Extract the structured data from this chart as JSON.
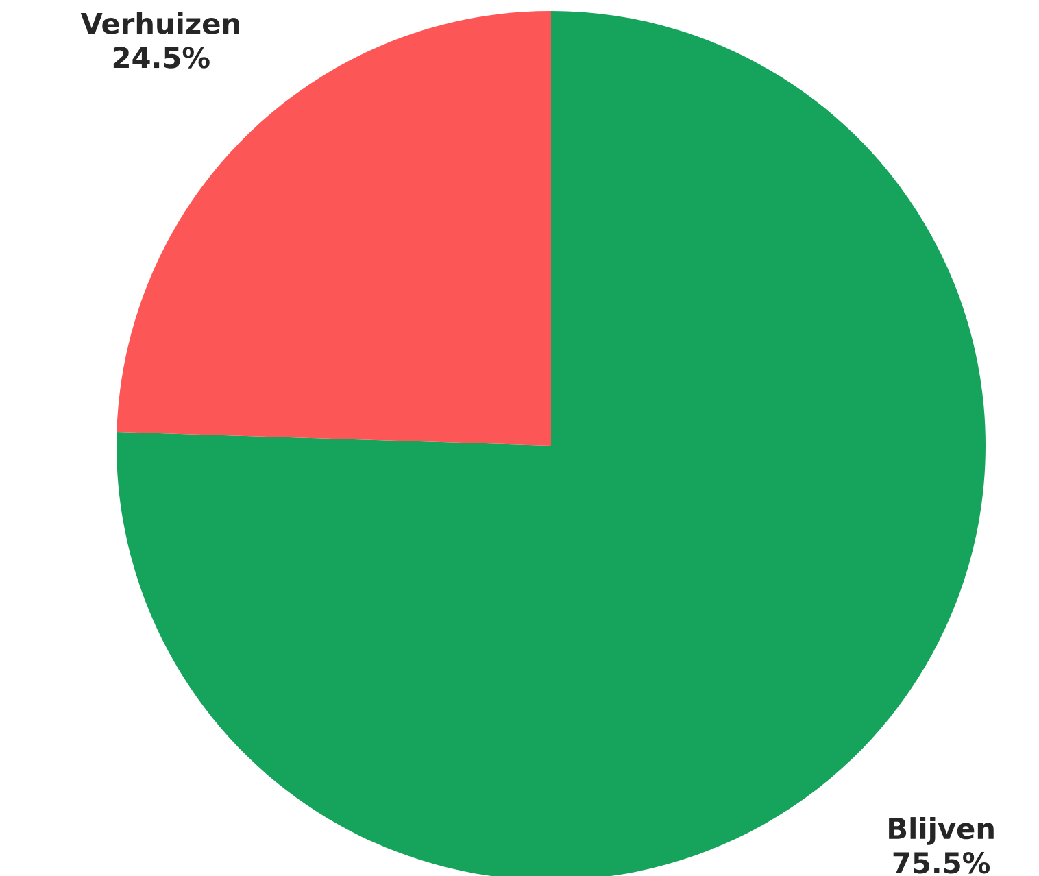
{
  "chart_data": {
    "type": "pie",
    "categories": [
      "Blijven",
      "Verhuizen"
    ],
    "values": [
      75.5,
      24.5
    ],
    "colors": [
      "#16a35b",
      "#fc5656"
    ],
    "value_labels": [
      "75.5%",
      "24.5%"
    ]
  }
}
